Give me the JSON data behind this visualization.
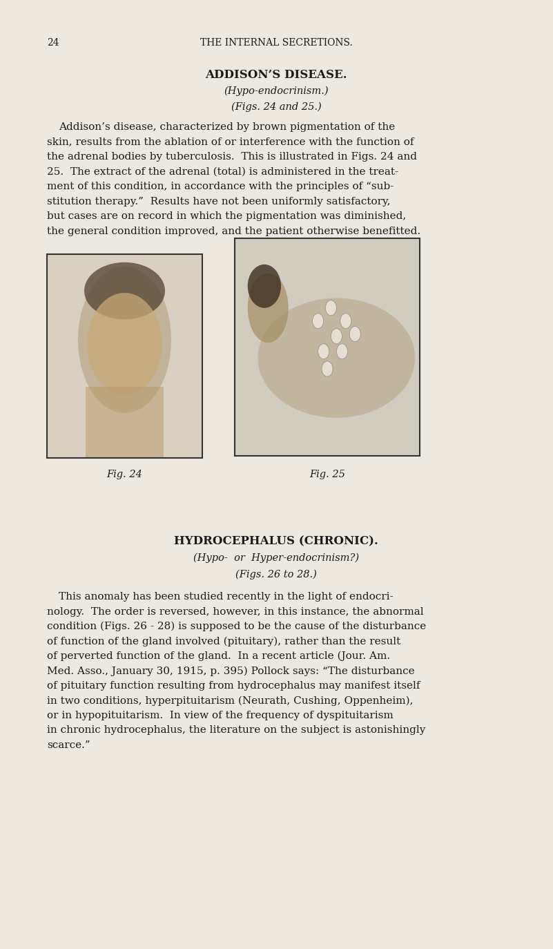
{
  "bg_color": "#ede8e0",
  "text_color": "#1a1a1a",
  "page_number": "24",
  "header": "THE INTERNAL SECRETIONS.",
  "title1": "ADDISON’S DISEASE.",
  "subtitle1a": "(Hypo-endocrinism.)",
  "subtitle1b": "(Figs. 24 and 25.)",
  "para1": "Addison’s disease, characterized by brown pigmentation of the skin, results from the ablation of or interference with the function of the adrenal bodies by tuberculosis.  This is illustrated in Figs. 24 and 25.  The extract of the adrenal (total) is administered in the treat­ment of this condition, in accordance with the principles of “sub­stitution therapy.”  Results have not been uniformly satisfactory, but cases are on record in which the pigmentation was diminished, the general condition improved, and the patient otherwise benefitted.",
  "fig24_caption": "Fig. 24",
  "fig25_caption": "Fig. 25",
  "title2": "HYDROCEPHALUS (CHRONIC).",
  "subtitle2a": "(Hypo-  or  Hyper-endocrinism?)",
  "subtitle2b": "(Figs. 26 to 28.)",
  "para2": "This anomaly has been studied recently in the light of endocri­nology.  The order is reversed, however, in this instance, the abnormal condition (Figs. 26 - 28) is supposed to be the cause of the disturbance of function of the gland involved (pituitary), rather than the result of perverted function of the gland.  In a recent article (Jour. Am. Med. Asso., January 30, 1915, p. 395) Pollock says: “The disturbance of pituitary function resulting from hydrocephalus may manifest itself in two conditions, hyperpituitarism (Neurath, Cushing, Oppenheim), or in hypopituitarism.  In view of the frequency of dyspituitarism in chronic hydrocephalus, the literature on the subject is astonishingly scarce.”"
}
